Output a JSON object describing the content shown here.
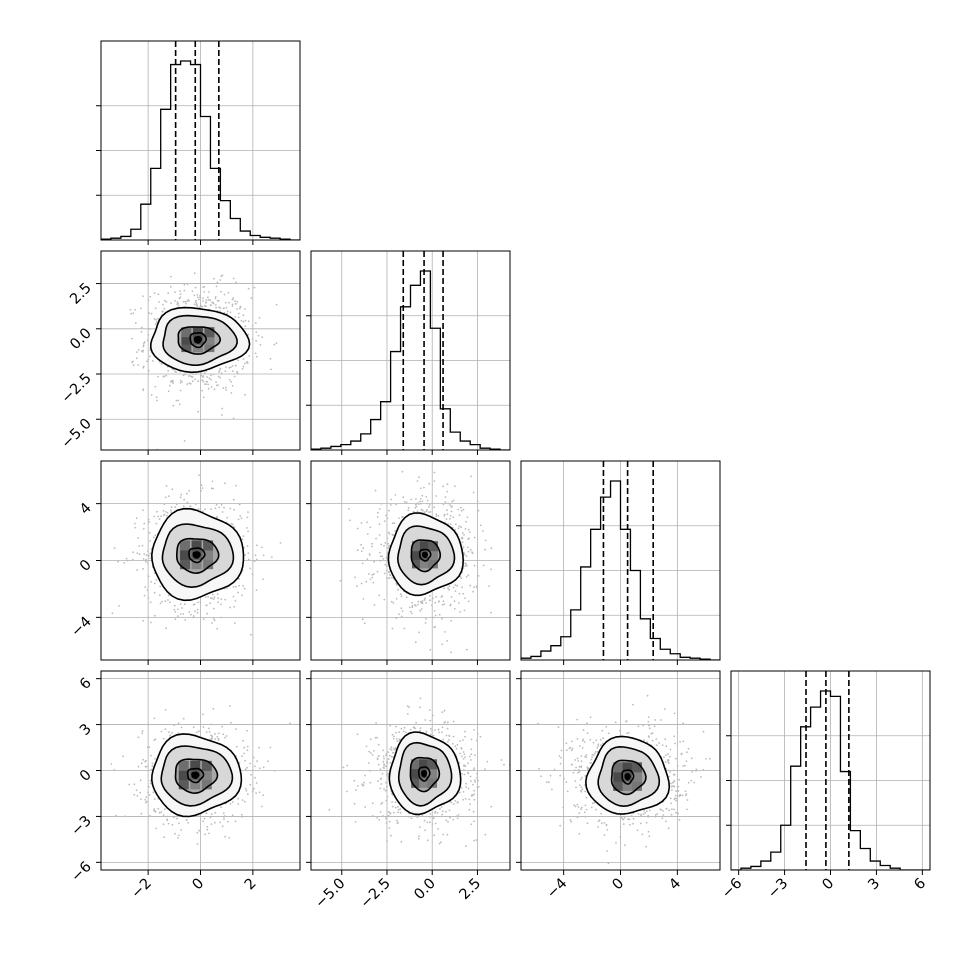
{
  "chart_data": {
    "type": "corner",
    "n_params": 4,
    "grid": true,
    "contour_levels": 4,
    "axes": [
      {
        "range": [
          -3.8,
          3.8
        ],
        "ticks": [
          -2,
          0,
          2
        ],
        "tick_labels": [
          "−2",
          "0",
          "2"
        ]
      },
      {
        "range": [
          -6.7,
          4.3
        ],
        "ticks": [
          -5.0,
          -2.5,
          0.0,
          2.5
        ],
        "tick_labels": [
          "−5.0",
          "−2.5",
          "0.0",
          "2.5"
        ]
      },
      {
        "range": [
          -7.0,
          7.0
        ],
        "ticks": [
          -4,
          0,
          4
        ],
        "tick_labels": [
          "−4",
          "0",
          "4"
        ]
      },
      {
        "range": [
          -6.5,
          6.5
        ],
        "ticks": [
          -6,
          -3,
          0,
          3,
          6
        ],
        "tick_labels": [
          "−6",
          "−3",
          "0",
          "3",
          "6"
        ]
      }
    ],
    "histograms": [
      {
        "param": 0,
        "edges": [
          -3.8,
          -3.42,
          -3.04,
          -2.66,
          -2.28,
          -1.9,
          -1.52,
          -1.14,
          -0.76,
          -0.38,
          0.0,
          0.38,
          0.76,
          1.14,
          1.52,
          1.9,
          2.28,
          2.66,
          3.04,
          3.42,
          3.8
        ],
        "counts": [
          0.005,
          0.01,
          0.02,
          0.06,
          0.2,
          0.4,
          0.73,
          0.98,
          1.0,
          0.98,
          0.69,
          0.4,
          0.22,
          0.12,
          0.05,
          0.025,
          0.015,
          0.01,
          0.005,
          0.0
        ],
        "quantiles": [
          -0.95,
          -0.2,
          0.7
        ]
      },
      {
        "param": 1,
        "edges": [
          -6.7,
          -6.15,
          -5.6,
          -5.05,
          -4.5,
          -3.95,
          -3.4,
          -2.85,
          -2.3,
          -1.75,
          -1.2,
          -0.65,
          -0.1,
          0.45,
          1.0,
          1.55,
          2.1,
          2.65,
          3.2,
          3.75,
          4.3
        ],
        "counts": [
          0.005,
          0.01,
          0.02,
          0.03,
          0.05,
          0.09,
          0.17,
          0.27,
          0.55,
          0.8,
          0.92,
          1.0,
          0.68,
          0.23,
          0.1,
          0.05,
          0.03,
          0.01,
          0.005,
          0.0
        ],
        "quantiles": [
          -1.6,
          -0.45,
          0.6
        ]
      },
      {
        "param": 2,
        "edges": [
          -7.0,
          -6.3,
          -5.6,
          -4.9,
          -4.2,
          -3.5,
          -2.8,
          -2.1,
          -1.4,
          -0.7,
          0.0,
          0.7,
          1.4,
          2.1,
          2.8,
          3.5,
          4.2,
          4.9,
          5.6,
          6.3,
          7.0
        ],
        "counts": [
          0.01,
          0.02,
          0.05,
          0.08,
          0.13,
          0.28,
          0.52,
          0.73,
          0.91,
          1.0,
          0.73,
          0.5,
          0.23,
          0.12,
          0.06,
          0.035,
          0.015,
          0.01,
          0.005,
          0.0
        ],
        "quantiles": [
          -1.2,
          0.5,
          2.3
        ]
      },
      {
        "param": 3,
        "edges": [
          -6.5,
          -5.85,
          -5.2,
          -4.55,
          -3.9,
          -3.25,
          -2.6,
          -1.95,
          -1.3,
          -0.65,
          0.0,
          0.65,
          1.3,
          1.95,
          2.6,
          3.25,
          3.9,
          4.55,
          5.2,
          5.85,
          6.5
        ],
        "counts": [
          0.0,
          0.01,
          0.02,
          0.05,
          0.1,
          0.25,
          0.58,
          0.8,
          0.91,
          1.0,
          0.97,
          0.55,
          0.22,
          0.12,
          0.05,
          0.025,
          0.01,
          0.0,
          0.0,
          0.0
        ],
        "quantiles": [
          -1.6,
          -0.3,
          1.2
        ]
      }
    ],
    "pairs": [
      {
        "x": 0,
        "y": 1,
        "center": [
          -0.1,
          -0.6
        ],
        "spread": [
          1.0,
          1.45
        ],
        "contours": [
          [
            0.3,
            0.4
          ],
          [
            0.8,
            0.75
          ],
          [
            1.4,
            1.35
          ],
          [
            1.85,
            1.75
          ]
        ]
      },
      {
        "x": 0,
        "y": 2,
        "center": [
          -0.15,
          0.4
        ],
        "spread": [
          1.0,
          1.95
        ],
        "contours": [
          [
            0.3,
            0.5
          ],
          [
            0.8,
            1.2
          ],
          [
            1.35,
            2.15
          ],
          [
            1.75,
            3.1
          ]
        ]
      },
      {
        "x": 0,
        "y": 3,
        "center": [
          -0.2,
          -0.3
        ],
        "spread": [
          1.0,
          1.55
        ],
        "contours": [
          [
            0.3,
            0.45
          ],
          [
            0.8,
            1.1
          ],
          [
            1.35,
            1.9
          ],
          [
            1.7,
            2.6
          ]
        ]
      },
      {
        "x": 1,
        "y": 2,
        "center": [
          -0.4,
          0.4
        ],
        "spread": [
          1.4,
          1.95
        ],
        "contours": [
          [
            0.3,
            0.4
          ],
          [
            0.8,
            1.1
          ],
          [
            1.55,
            2.0
          ],
          [
            2.05,
            2.8
          ]
        ]
      },
      {
        "x": 1,
        "y": 3,
        "center": [
          -0.45,
          -0.2
        ],
        "spread": [
          1.45,
          1.6
        ],
        "contours": [
          [
            0.3,
            0.45
          ],
          [
            0.8,
            1.1
          ],
          [
            1.45,
            2.0
          ],
          [
            1.95,
            2.6
          ]
        ]
      },
      {
        "x": 2,
        "y": 3,
        "center": [
          0.5,
          -0.4
        ],
        "spread": [
          1.95,
          1.6
        ],
        "contours": [
          [
            0.4,
            0.45
          ],
          [
            1.2,
            1.1
          ],
          [
            2.1,
            1.9
          ],
          [
            2.85,
            2.5
          ]
        ]
      }
    ]
  }
}
